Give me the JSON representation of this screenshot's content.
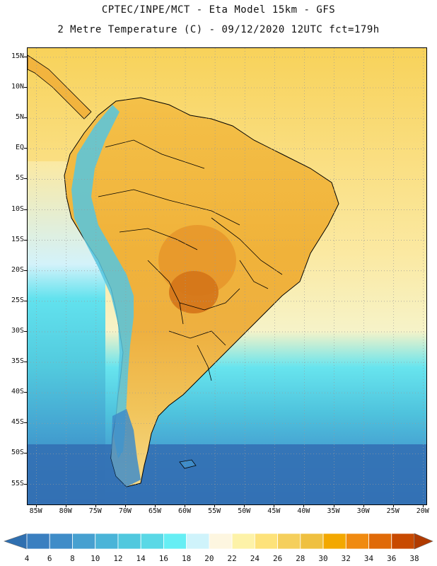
{
  "header": {
    "line1": "CPTEC/INPE/MCT -  Eta Model 15km - GFS",
    "line2": "2 Metre Temperature (C) - 09/12/2020 12UTC fct=179h"
  },
  "axes": {
    "lat_labels": [
      "15N",
      "10N",
      "5N",
      "EQ",
      "5S",
      "10S",
      "15S",
      "20S",
      "25S",
      "30S",
      "35S",
      "40S",
      "45S",
      "50S",
      "55S"
    ],
    "lat_values": [
      15,
      10,
      5,
      0,
      -5,
      -10,
      -15,
      -20,
      -25,
      -30,
      -35,
      -40,
      -45,
      -50,
      -55
    ],
    "lon_labels": [
      "85W",
      "80W",
      "75W",
      "70W",
      "65W",
      "60W",
      "55W",
      "50W",
      "45W",
      "40W",
      "35W",
      "30W",
      "25W",
      "20W"
    ],
    "lon_values": [
      -85,
      -80,
      -75,
      -70,
      -65,
      -60,
      -55,
      -50,
      -45,
      -40,
      -35,
      -30,
      -25,
      -20
    ]
  },
  "colorbar": {
    "levels": [
      "4",
      "6",
      "8",
      "10",
      "12",
      "14",
      "16",
      "18",
      "20",
      "22",
      "24",
      "26",
      "28",
      "30",
      "32",
      "34",
      "36",
      "38"
    ],
    "colors": [
      "#3a7fc0",
      "#3f8cc8",
      "#46a0d0",
      "#4ab4d8",
      "#50c8de",
      "#5ad8e6",
      "#66eef4",
      "#cff3fb",
      "#fdf6e0",
      "#fdf2a8",
      "#fde27a",
      "#f5cf5c",
      "#efc040",
      "#f3a800",
      "#f08a10",
      "#e06a08",
      "#c84a00"
    ],
    "left_arrow_color": "#2f6fb0",
    "right_arrow_color": "#b03a00"
  },
  "map": {
    "ocean_north_color": "#f7c84c",
    "ocean_south_color": "#3f80c2",
    "land_warm_color": "#f2b43e",
    "land_hot_color": "#dd8422",
    "andes_color": "#5ab8d8",
    "patagonia_color": "#3f8cc8",
    "grid_color": "#9a9a9a"
  }
}
